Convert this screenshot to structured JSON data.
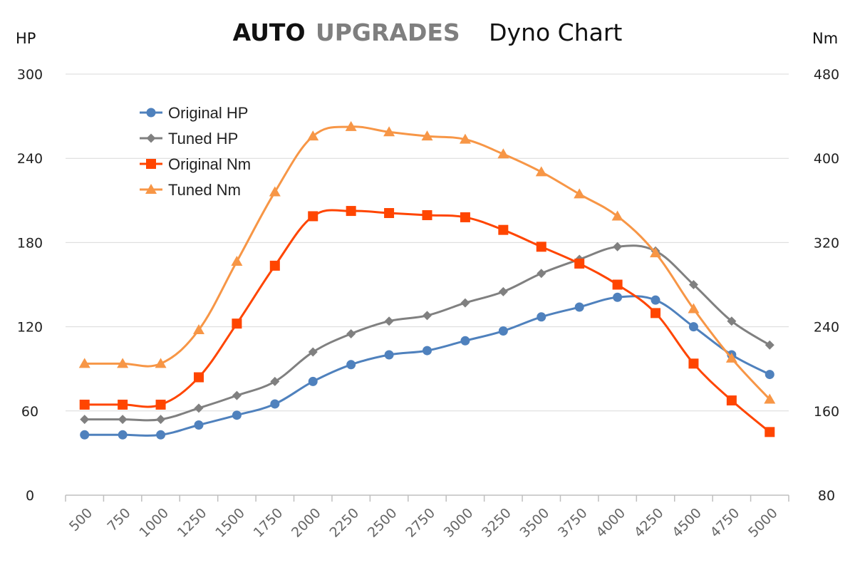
{
  "title": {
    "brand_part1": "AUTO",
    "brand_part2": "UPGRADES",
    "subtitle": "Dyno Chart",
    "brand_color_1": "#111111",
    "brand_color_2": "#7f7f7f"
  },
  "axes": {
    "left_unit": "HP",
    "right_unit": "Nm"
  },
  "chart_data": {
    "type": "line",
    "title": "AUTO UPGRADES Dyno Chart",
    "x": [
      500,
      750,
      1000,
      1250,
      1500,
      1750,
      2000,
      2250,
      2500,
      2750,
      3000,
      3250,
      3500,
      3750,
      4000,
      4250,
      4500,
      4750,
      5000
    ],
    "x_tick_labels": [
      "500",
      "750",
      "1000",
      "1250",
      "1500",
      "1750",
      "2000",
      "2250",
      "2500",
      "2750",
      "3000",
      "3250",
      "3500",
      "3750",
      "4000",
      "4250",
      "4500",
      "4750",
      "5000"
    ],
    "y_left": {
      "label": "HP",
      "range": [
        0,
        300
      ],
      "ticks": [
        0,
        60,
        120,
        180,
        240,
        300
      ]
    },
    "y_right": {
      "label": "Nm",
      "range": [
        80,
        480
      ],
      "ticks": [
        80,
        160,
        240,
        320,
        400,
        480
      ]
    },
    "grid": "horizontal",
    "legend_position": "top-left",
    "series": [
      {
        "name": "Original HP",
        "axis": "left",
        "color": "#4f81bd",
        "marker": "circle",
        "values": [
          43,
          43,
          43,
          50,
          57,
          65,
          81,
          93,
          100,
          103,
          110,
          117,
          127,
          134,
          141,
          139,
          120,
          100,
          86
        ]
      },
      {
        "name": "Tuned HP",
        "axis": "left",
        "color": "#808080",
        "marker": "diamond",
        "values": [
          54,
          54,
          54,
          62,
          71,
          81,
          102,
          115,
          124,
          128,
          137,
          145,
          158,
          168,
          177,
          174,
          150,
          124,
          107
        ]
      },
      {
        "name": "Original Nm",
        "axis": "right",
        "color": "#ff4500",
        "marker": "square",
        "values": [
          166,
          166,
          166,
          192,
          243,
          298,
          345,
          350,
          348,
          346,
          344,
          332,
          316,
          300,
          280,
          253,
          205,
          170,
          140
        ]
      },
      {
        "name": "Tuned Nm",
        "axis": "right",
        "color": "#f79646",
        "marker": "triangle",
        "values": [
          205,
          205,
          205,
          237,
          302,
          368,
          421,
          430,
          425,
          421,
          418,
          404,
          387,
          366,
          345,
          310,
          257,
          210,
          171
        ]
      }
    ]
  }
}
